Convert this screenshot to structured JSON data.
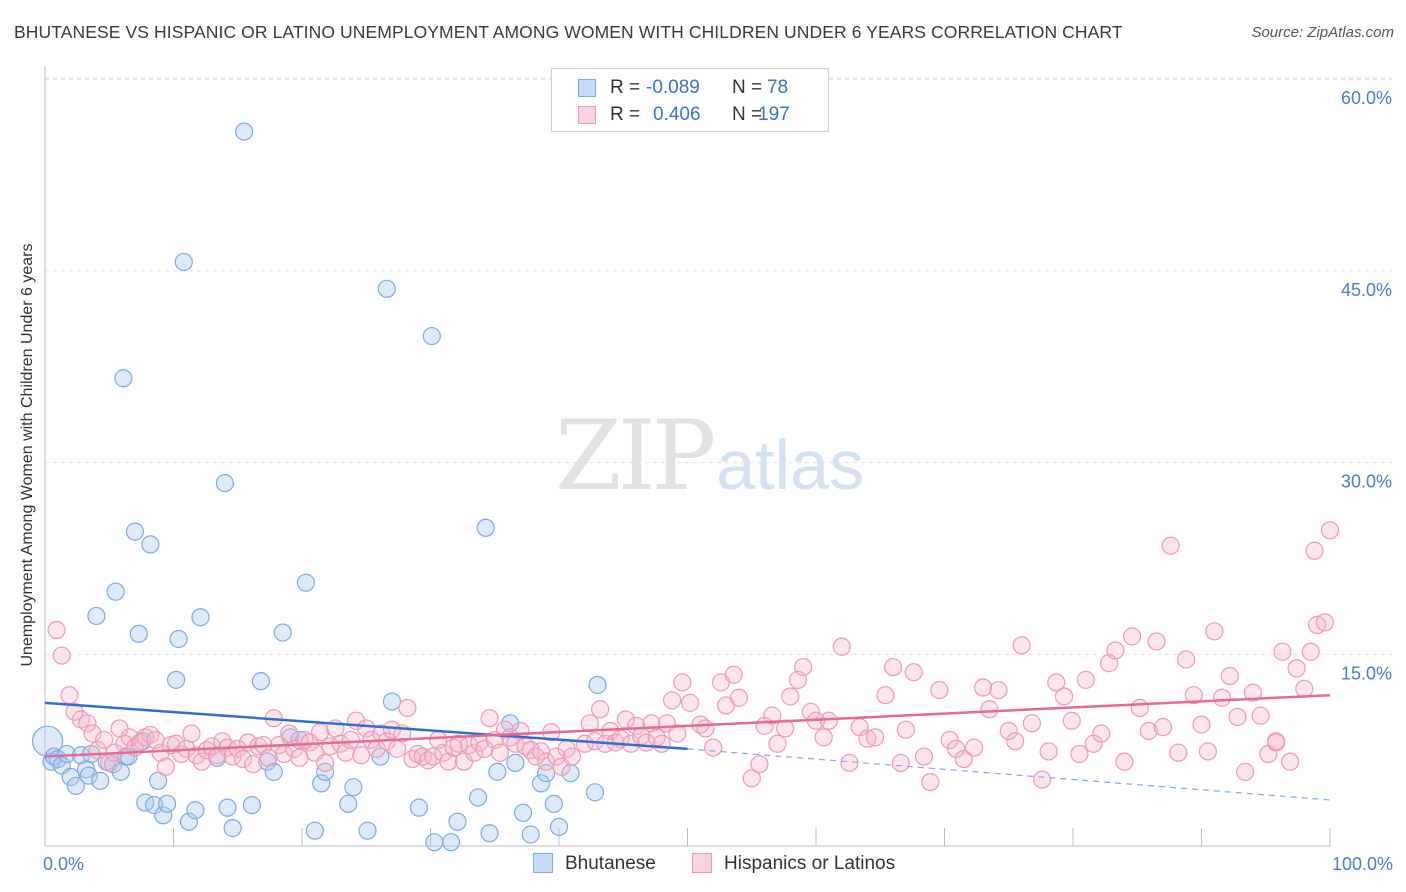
{
  "header": {
    "title": "BHUTANESE VS HISPANIC OR LATINO UNEMPLOYMENT AMONG WOMEN WITH CHILDREN UNDER 6 YEARS CORRELATION CHART",
    "source": "Source: ZipAtlas.com"
  },
  "watermark": {
    "zip": "ZIP",
    "atlas": "atlas"
  },
  "legend": {
    "rows": [
      {
        "r_label": "R =",
        "r_value": "-0.089",
        "n_label": "N =",
        "n_value": "78",
        "color": "#7aaae8",
        "fill": "#c5daf6"
      },
      {
        "r_label": "R =",
        "r_value": "0.406",
        "n_label": "N =",
        "n_value": "197",
        "color": "#ee9ab7",
        "fill": "#fad3e0"
      }
    ]
  },
  "bottom_legend": {
    "items": [
      "Bhutanese",
      "Hispanics or Latinos"
    ]
  },
  "chart_data": {
    "type": "scatter",
    "ylabel": "Unemployment Among Women with Children Under 6 years",
    "xlabel": "",
    "xlim": [
      0,
      100
    ],
    "ylim": [
      0,
      60
    ],
    "x_tick_labels": [
      "0.0%",
      "100.0%"
    ],
    "y_ticks": [
      15,
      30,
      45,
      60
    ],
    "y_tick_labels": [
      "15.0%",
      "30.0%",
      "45.0%",
      "60.0%"
    ],
    "grid": true,
    "legend_position": "top-center",
    "colors": {
      "bhutanese": "#7aaae8",
      "hispanic": "#ee9ab7",
      "bhutanese_line": "#2f6fce",
      "hispanic_line": "#e56b95"
    },
    "series": [
      {
        "name": "Bhutanese",
        "trend": {
          "x": [
            0,
            50
          ],
          "y": [
            11.2,
            7.6
          ],
          "dashed_to": [
            100,
            3.6
          ]
        },
        "points": [
          [
            0.2,
            8.2
          ],
          [
            0.5,
            6.6
          ],
          [
            0.7,
            7.0
          ],
          [
            1.0,
            6.8
          ],
          [
            1.3,
            6.3
          ],
          [
            1.7,
            7.2
          ],
          [
            2.0,
            5.4
          ],
          [
            2.4,
            4.7
          ],
          [
            2.8,
            7.1
          ],
          [
            3.2,
            6.0
          ],
          [
            3.4,
            5.5
          ],
          [
            3.6,
            7.2
          ],
          [
            4.0,
            18.0
          ],
          [
            4.3,
            5.1
          ],
          [
            4.8,
            6.6
          ],
          [
            5.3,
            6.4
          ],
          [
            5.5,
            19.9
          ],
          [
            5.9,
            5.8
          ],
          [
            6.1,
            36.6
          ],
          [
            6.3,
            7.0
          ],
          [
            6.5,
            7.0
          ],
          [
            7.0,
            24.6
          ],
          [
            7.3,
            16.6
          ],
          [
            7.6,
            8.2
          ],
          [
            7.8,
            3.4
          ],
          [
            8.2,
            23.6
          ],
          [
            8.5,
            3.2
          ],
          [
            8.8,
            5.1
          ],
          [
            9.2,
            2.4
          ],
          [
            9.5,
            3.3
          ],
          [
            10.2,
            13.0
          ],
          [
            10.4,
            16.2
          ],
          [
            10.8,
            45.7
          ],
          [
            11.2,
            1.9
          ],
          [
            11.7,
            2.8
          ],
          [
            12.1,
            17.9
          ],
          [
            13.4,
            6.9
          ],
          [
            14.0,
            28.4
          ],
          [
            14.2,
            3.0
          ],
          [
            14.6,
            1.4
          ],
          [
            15.5,
            55.9
          ],
          [
            16.1,
            3.2
          ],
          [
            16.8,
            12.9
          ],
          [
            17.3,
            6.6
          ],
          [
            17.8,
            5.8
          ],
          [
            18.5,
            16.7
          ],
          [
            19.1,
            8.5
          ],
          [
            19.8,
            8.3
          ],
          [
            20.3,
            20.6
          ],
          [
            21.0,
            1.2
          ],
          [
            21.5,
            4.9
          ],
          [
            21.8,
            5.8
          ],
          [
            23.6,
            3.3
          ],
          [
            24.0,
            4.6
          ],
          [
            25.1,
            1.2
          ],
          [
            26.1,
            7.0
          ],
          [
            26.6,
            43.6
          ],
          [
            27.0,
            11.3
          ],
          [
            29.1,
            3.0
          ],
          [
            30.1,
            39.9
          ],
          [
            30.3,
            0.3
          ],
          [
            31.6,
            0.3
          ],
          [
            32.1,
            1.9
          ],
          [
            33.7,
            3.8
          ],
          [
            34.3,
            24.9
          ],
          [
            34.6,
            1.0
          ],
          [
            35.2,
            5.8
          ],
          [
            36.2,
            9.6
          ],
          [
            36.6,
            6.5
          ],
          [
            37.2,
            2.6
          ],
          [
            37.8,
            0.9
          ],
          [
            38.6,
            4.9
          ],
          [
            39.0,
            5.7
          ],
          [
            39.6,
            3.3
          ],
          [
            40.0,
            1.5
          ],
          [
            40.9,
            5.7
          ],
          [
            42.8,
            4.2
          ],
          [
            43.0,
            12.6
          ]
        ]
      },
      {
        "name": "Hispanics or Latinos",
        "trend": {
          "x": [
            0,
            100
          ],
          "y": [
            7.0,
            11.8
          ]
        },
        "points": [
          [
            0.9,
            16.9
          ],
          [
            1.3,
            14.9
          ],
          [
            1.9,
            11.8
          ],
          [
            2.3,
            10.5
          ],
          [
            2.8,
            9.9
          ],
          [
            3.3,
            9.6
          ],
          [
            3.7,
            8.8
          ],
          [
            4.1,
            7.5
          ],
          [
            4.6,
            8.3
          ],
          [
            5.0,
            6.5
          ],
          [
            5.4,
            7.3
          ],
          [
            5.8,
            9.2
          ],
          [
            6.2,
            8.0
          ],
          [
            6.6,
            8.5
          ],
          [
            7.0,
            7.7
          ],
          [
            7.4,
            8.1
          ],
          [
            7.8,
            8.5
          ],
          [
            8.2,
            8.7
          ],
          [
            8.6,
            8.3
          ],
          [
            9.0,
            7.3
          ],
          [
            9.4,
            6.2
          ],
          [
            9.8,
            7.9
          ],
          [
            10.2,
            8.0
          ],
          [
            10.6,
            7.2
          ],
          [
            11.0,
            7.6
          ],
          [
            11.4,
            8.8
          ],
          [
            11.8,
            7.1
          ],
          [
            12.2,
            6.6
          ],
          [
            12.6,
            7.5
          ],
          [
            13.0,
            7.8
          ],
          [
            13.4,
            7.1
          ],
          [
            13.8,
            8.2
          ],
          [
            14.2,
            7.7
          ],
          [
            14.6,
            7.0
          ],
          [
            15.0,
            7.6
          ],
          [
            15.4,
            6.8
          ],
          [
            15.8,
            8.1
          ],
          [
            16.2,
            6.4
          ],
          [
            16.6,
            7.8
          ],
          [
            17.0,
            7.9
          ],
          [
            17.4,
            6.9
          ],
          [
            17.8,
            10.0
          ],
          [
            18.2,
            7.9
          ],
          [
            18.6,
            7.2
          ],
          [
            19.0,
            8.8
          ],
          [
            19.4,
            7.6
          ],
          [
            19.8,
            6.9
          ],
          [
            20.2,
            8.3
          ],
          [
            20.6,
            8.1
          ],
          [
            21.0,
            7.3
          ],
          [
            21.4,
            8.9
          ],
          [
            21.8,
            6.5
          ],
          [
            22.2,
            7.8
          ],
          [
            22.6,
            9.2
          ],
          [
            23.0,
            8.0
          ],
          [
            23.4,
            7.3
          ],
          [
            23.8,
            8.3
          ],
          [
            24.2,
            9.8
          ],
          [
            24.6,
            7.1
          ],
          [
            25.0,
            9.2
          ],
          [
            25.4,
            8.3
          ],
          [
            25.8,
            7.6
          ],
          [
            26.2,
            8.8
          ],
          [
            26.6,
            8.2
          ],
          [
            27.0,
            9.1
          ],
          [
            27.4,
            7.6
          ],
          [
            27.8,
            8.8
          ],
          [
            28.2,
            10.8
          ],
          [
            28.6,
            6.8
          ],
          [
            29.0,
            7.2
          ],
          [
            29.4,
            7.0
          ],
          [
            29.8,
            6.7
          ],
          [
            30.2,
            7.0
          ],
          [
            30.6,
            8.3
          ],
          [
            31.0,
            7.3
          ],
          [
            31.4,
            6.6
          ],
          [
            31.8,
            7.7
          ],
          [
            32.2,
            8.0
          ],
          [
            32.6,
            6.6
          ],
          [
            33.0,
            7.9
          ],
          [
            33.4,
            7.3
          ],
          [
            33.8,
            8.1
          ],
          [
            34.2,
            7.6
          ],
          [
            34.6,
            10.0
          ],
          [
            35.0,
            8.3
          ],
          [
            35.4,
            7.3
          ],
          [
            35.8,
            9.1
          ],
          [
            36.2,
            8.5
          ],
          [
            36.6,
            8.0
          ],
          [
            37.0,
            9.0
          ],
          [
            37.4,
            7.8
          ],
          [
            37.8,
            7.5
          ],
          [
            38.2,
            7.0
          ],
          [
            38.6,
            7.4
          ],
          [
            39.0,
            6.6
          ],
          [
            39.4,
            8.9
          ],
          [
            39.8,
            7.0
          ],
          [
            40.2,
            6.2
          ],
          [
            40.6,
            7.6
          ],
          [
            41.0,
            7.0
          ],
          [
            42.0,
            8.0
          ],
          [
            42.4,
            9.6
          ],
          [
            42.8,
            8.2
          ],
          [
            43.2,
            10.7
          ],
          [
            43.6,
            8.0
          ],
          [
            44.0,
            9.0
          ],
          [
            44.4,
            8.1
          ],
          [
            44.8,
            8.4
          ],
          [
            45.2,
            9.9
          ],
          [
            45.6,
            8.0
          ],
          [
            46.0,
            9.4
          ],
          [
            46.4,
            8.6
          ],
          [
            46.8,
            8.1
          ],
          [
            47.2,
            9.6
          ],
          [
            47.6,
            8.5
          ],
          [
            48.0,
            8.0
          ],
          [
            48.4,
            9.6
          ],
          [
            48.8,
            11.4
          ],
          [
            49.2,
            8.8
          ],
          [
            49.6,
            12.8
          ],
          [
            50.2,
            11.2
          ],
          [
            51.0,
            9.5
          ],
          [
            51.4,
            9.2
          ],
          [
            52.0,
            7.7
          ],
          [
            52.6,
            12.8
          ],
          [
            53.0,
            11.0
          ],
          [
            53.6,
            13.4
          ],
          [
            54.0,
            11.6
          ],
          [
            55.0,
            5.3
          ],
          [
            55.6,
            6.4
          ],
          [
            56.0,
            9.4
          ],
          [
            56.6,
            10.2
          ],
          [
            57.0,
            8.0
          ],
          [
            57.6,
            9.2
          ],
          [
            58.0,
            11.7
          ],
          [
            58.6,
            13.0
          ],
          [
            59.0,
            14.0
          ],
          [
            59.6,
            10.5
          ],
          [
            60.0,
            9.8
          ],
          [
            60.6,
            8.5
          ],
          [
            61.0,
            9.8
          ],
          [
            62.0,
            15.6
          ],
          [
            62.6,
            6.5
          ],
          [
            63.4,
            9.3
          ],
          [
            64.0,
            8.4
          ],
          [
            64.6,
            8.5
          ],
          [
            65.4,
            11.8
          ],
          [
            66.0,
            14.0
          ],
          [
            66.6,
            6.5
          ],
          [
            67.0,
            9.1
          ],
          [
            67.6,
            13.6
          ],
          [
            68.4,
            7.0
          ],
          [
            68.9,
            5.0
          ],
          [
            69.6,
            12.2
          ],
          [
            70.4,
            8.3
          ],
          [
            70.9,
            7.6
          ],
          [
            71.5,
            6.8
          ],
          [
            72.3,
            7.7
          ],
          [
            73.0,
            12.4
          ],
          [
            73.5,
            10.7
          ],
          [
            74.2,
            12.2
          ],
          [
            75.0,
            9.0
          ],
          [
            75.5,
            8.2
          ],
          [
            76.0,
            15.7
          ],
          [
            76.8,
            9.6
          ],
          [
            77.6,
            5.2
          ],
          [
            78.1,
            7.4
          ],
          [
            78.7,
            12.8
          ],
          [
            79.3,
            11.7
          ],
          [
            79.9,
            9.8
          ],
          [
            80.5,
            7.2
          ],
          [
            81.0,
            13.0
          ],
          [
            81.6,
            8.0
          ],
          [
            82.2,
            8.8
          ],
          [
            82.8,
            14.3
          ],
          [
            83.3,
            15.3
          ],
          [
            84.0,
            6.6
          ],
          [
            84.6,
            16.4
          ],
          [
            85.2,
            10.8
          ],
          [
            85.9,
            9.0
          ],
          [
            86.5,
            16.0
          ],
          [
            87.0,
            9.3
          ],
          [
            87.6,
            23.5
          ],
          [
            88.2,
            7.3
          ],
          [
            88.8,
            14.6
          ],
          [
            89.4,
            11.8
          ],
          [
            90.0,
            9.5
          ],
          [
            90.5,
            7.4
          ],
          [
            91.0,
            16.8
          ],
          [
            91.6,
            11.6
          ],
          [
            92.2,
            13.3
          ],
          [
            92.8,
            10.1
          ],
          [
            93.4,
            5.8
          ],
          [
            94.0,
            12.0
          ],
          [
            94.6,
            10.2
          ],
          [
            95.2,
            7.2
          ],
          [
            95.8,
            8.1
          ],
          [
            96.3,
            15.2
          ],
          [
            96.9,
            6.6
          ],
          [
            97.4,
            13.9
          ],
          [
            98.0,
            12.3
          ],
          [
            98.5,
            15.2
          ],
          [
            99.0,
            17.3
          ],
          [
            99.6,
            17.5
          ],
          [
            100.0,
            24.7
          ],
          [
            98.8,
            23.1
          ],
          [
            95.8,
            8.2
          ]
        ]
      }
    ]
  }
}
